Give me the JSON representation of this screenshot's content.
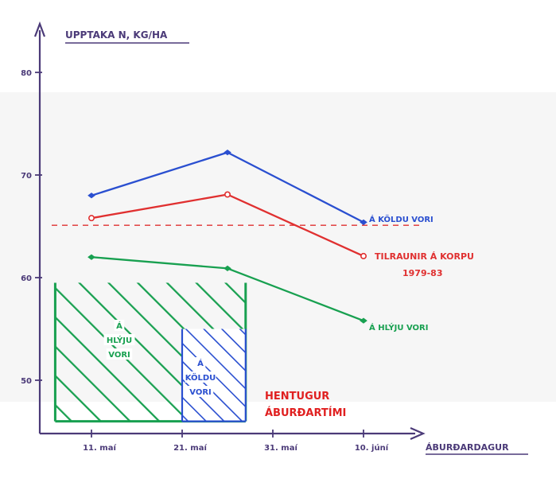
{
  "chart_data": {
    "type": "line",
    "title": "UPPTAKA N, KG/HA",
    "xlabel": "ÁBURÐARDAGUR",
    "ylabel": "UPPTAKA N, KG/HA",
    "x_ticks": [
      "11. maí",
      "21. maí",
      "31. maí",
      "10. júní"
    ],
    "y_ticks": [
      50,
      60,
      70,
      80
    ],
    "ylim": [
      45,
      83
    ],
    "grid": false,
    "series": [
      {
        "name": "Á KÖLDU VORI",
        "color": "#2a4fd0",
        "points": [
          [
            "11. maí",
            68.0
          ],
          [
            "26. maí",
            72.2
          ],
          [
            "10. júní",
            65.4
          ]
        ]
      },
      {
        "name": "TILRAUNIR Á KORPU 1979-83",
        "color": "#e03030",
        "points": [
          [
            "11. maí",
            65.8
          ],
          [
            "26. maí",
            68.1
          ],
          [
            "10. júní",
            62.1
          ]
        ]
      },
      {
        "name": "Á HLÝJU VORI",
        "color": "#18a050",
        "points": [
          [
            "11. maí",
            62.0
          ],
          [
            "26. maí",
            60.9
          ],
          [
            "10. júní",
            55.8
          ]
        ]
      }
    ],
    "reference_line": {
      "y": 65.1,
      "color": "#e03030",
      "style": "dashed"
    },
    "regions": [
      {
        "name": "HENTUGUR ÁBURÐARTÍMI",
        "label_color": "#e02020",
        "parts": [
          {
            "label_lines": [
              "Á",
              "HLÝJU",
              "VORI"
            ],
            "color": "#18a050",
            "x_from": "7. maí",
            "x_to": "28. maí",
            "y_from": 46,
            "y_to": 59.5
          },
          {
            "label_lines": [
              "Á",
              "KÖLDU",
              "VORI"
            ],
            "color": "#2a4fd0",
            "x_from": "21. maí",
            "x_to": "28. maí",
            "y_from": 46,
            "y_to": 55
          }
        ]
      }
    ],
    "annotations": [
      {
        "text": "Á KÖLDU VORI",
        "color": "#2a4fd0"
      },
      {
        "text": "TILRAUNIR Á KORPU",
        "color": "#e03030"
      },
      {
        "text": "1979-83",
        "color": "#e03030"
      },
      {
        "text": "Á HLÝJU VORI",
        "color": "#18a050"
      },
      {
        "text": "HENTUGUR",
        "color": "#e02020"
      },
      {
        "text": "ÁBURÐARTÍMI",
        "color": "#e02020"
      }
    ]
  }
}
